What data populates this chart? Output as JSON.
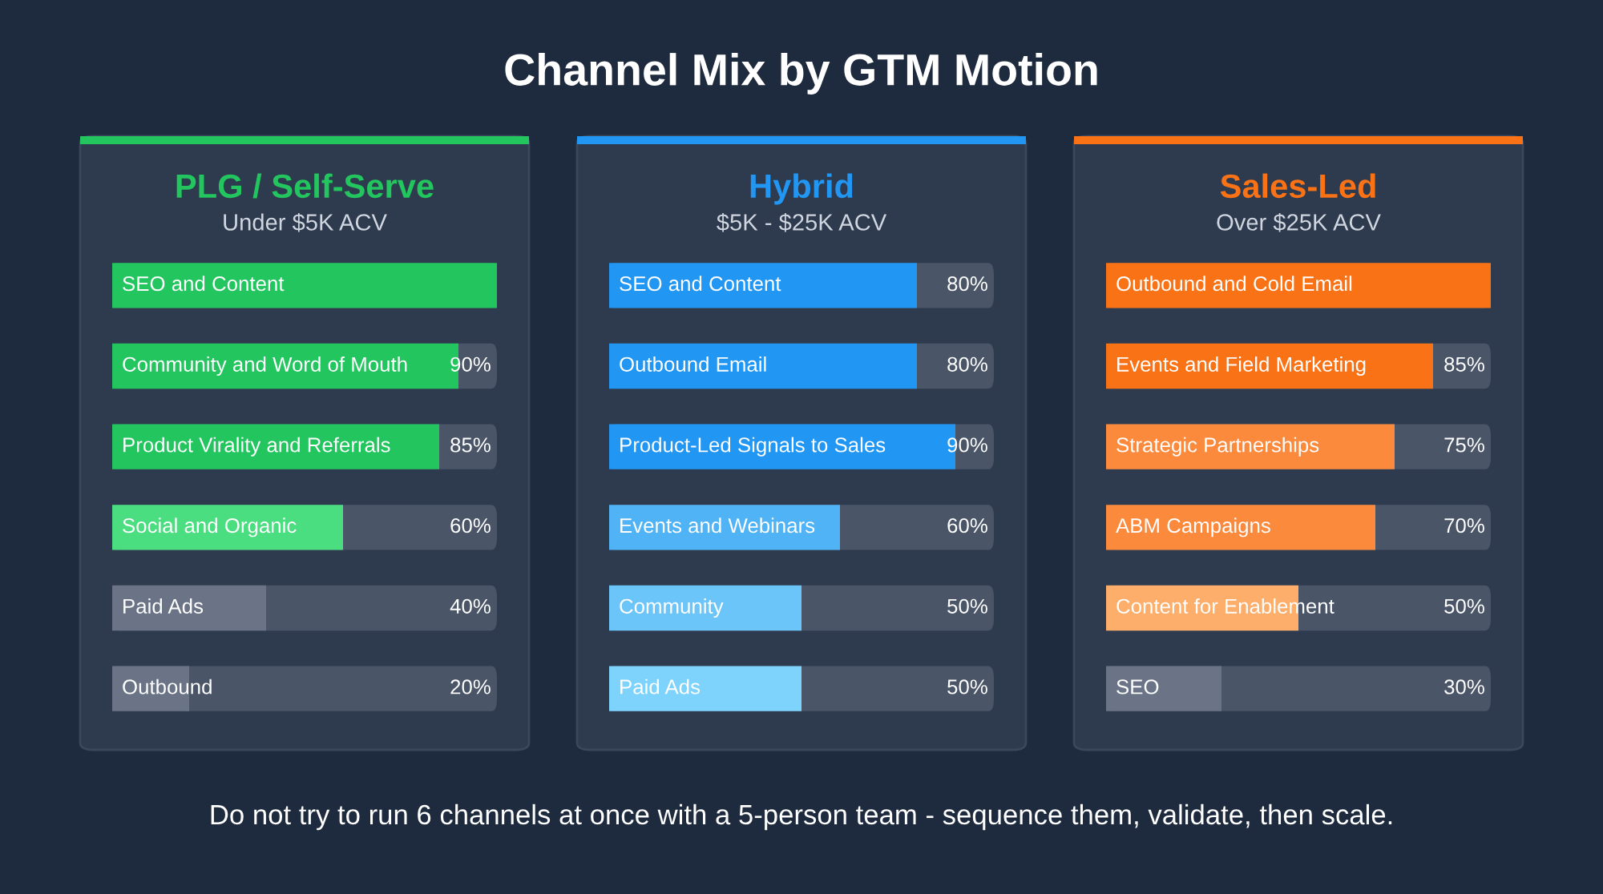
{
  "chart_data": [
    {
      "type": "bar",
      "orientation": "horizontal",
      "title": "PLG / Self-Serve",
      "subtitle": "Under $5K ACV",
      "annotations": [
        "Channel Mix by GTM Motion",
        "Do not try to run 6 channels at once with a 5-person team - sequence them, validate, then scale."
      ],
      "categories": [
        "SEO and Content",
        "Community and Word of Mouth",
        "Product Virality and Referrals",
        "Social and Organic",
        "Paid Ads",
        "Outbound"
      ],
      "values": [
        100,
        90,
        85,
        60,
        40,
        20
      ],
      "value_labels": [
        null,
        "90%",
        "85%",
        "60%",
        "40%",
        "20%"
      ],
      "colors": [
        "#22c55e",
        "#22c55e",
        "#22c55e",
        "#4ade80",
        "#6b7487",
        "#6b7487"
      ],
      "xlim": [
        0,
        100
      ]
    },
    {
      "type": "bar",
      "orientation": "horizontal",
      "title": "Hybrid",
      "subtitle": "$5K - $25K ACV",
      "categories": [
        "SEO and Content",
        "Outbound Email",
        "Product-Led Signals to Sales",
        "Events and Webinars",
        "Community",
        "Paid Ads"
      ],
      "values": [
        80,
        80,
        90,
        60,
        50,
        50
      ],
      "value_labels": [
        "80%",
        "80%",
        "90%",
        "60%",
        "50%",
        "50%"
      ],
      "colors": [
        "#2196f3",
        "#2196f3",
        "#2196f3",
        "#4fb3f6",
        "#6cc5f8",
        "#7dd3fc"
      ],
      "xlim": [
        0,
        100
      ]
    },
    {
      "type": "bar",
      "orientation": "horizontal",
      "title": "Sales-Led",
      "subtitle": "Over $25K ACV",
      "categories": [
        "Outbound and Cold Email",
        "Events and Field Marketing",
        "Strategic Partnerships",
        "ABM Campaigns",
        "Content for Enablement",
        "SEO"
      ],
      "values": [
        100,
        85,
        75,
        70,
        50,
        30
      ],
      "value_labels": [
        null,
        "85%",
        "75%",
        "70%",
        "50%",
        "30%"
      ],
      "colors": [
        "#f97316",
        "#f97316",
        "#fb8a3c",
        "#fb8a3c",
        "#fdae6b",
        "#6b7487"
      ],
      "xlim": [
        0,
        100
      ]
    }
  ]
}
